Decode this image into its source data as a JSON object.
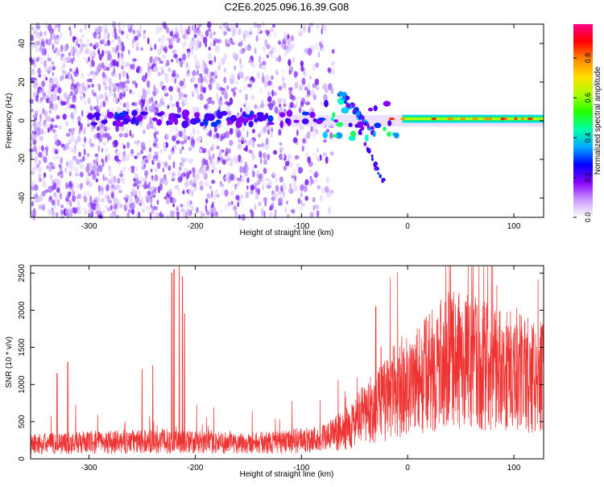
{
  "figure": {
    "title": "C2E6.2025.096.16.39.G08"
  },
  "chart_data": [
    {
      "type": "heatmap",
      "xlabel": "Height of straight line (km)",
      "ylabel": "Frequency (Hz)",
      "xlim": [
        -355,
        128
      ],
      "ylim": [
        -50,
        50
      ],
      "xticks": [
        -300,
        -200,
        -100,
        0,
        100
      ],
      "yticks": [
        -40,
        -20,
        0,
        20,
        40
      ],
      "colorbar": {
        "label": "Normalized spectral amplitude",
        "range": [
          0,
          0.97
        ],
        "ticks": [
          0.0,
          0.2,
          0.4,
          0.6,
          0.8
        ],
        "colormap": [
          "#ffffff",
          "#cc99ff",
          "#8800ff",
          "#0000ff",
          "#00aaff",
          "#00ffaa",
          "#22ff00",
          "#aaff00",
          "#ffdd00",
          "#ff8800",
          "#ff0000",
          "#ff0088"
        ]
      },
      "features": {
        "scattered_noise_x_range": [
          -355,
          -70
        ],
        "noise_y_range": [
          -50,
          50
        ],
        "carrier_frequency_hz": 1,
        "carrier_strong_from_km": -5,
        "carrier_x_end": 128,
        "faint_band_half_width_hz": 3
      },
      "grid": false
    },
    {
      "type": "line",
      "xlabel": "Height of straight line (km)",
      "ylabel": "SNR (10 * v/v)",
      "xlim": [
        -355,
        128
      ],
      "ylim": [
        0,
        2600
      ],
      "xticks": [
        -300,
        -200,
        -100,
        0,
        100
      ],
      "yticks": [
        0,
        500,
        1000,
        1500,
        2000,
        2500
      ],
      "series": [
        {
          "color": "#ee3333",
          "baseline_points": [
            [
              -355,
              200
            ],
            [
              -300,
              220
            ],
            [
              -260,
              230
            ],
            [
              -230,
              240
            ],
            [
              -210,
              230
            ],
            [
              -180,
              220
            ],
            [
              -150,
              215
            ],
            [
              -120,
              220
            ],
            [
              -100,
              250
            ],
            [
              -80,
              280
            ],
            [
              -60,
              380
            ],
            [
              -40,
              600
            ],
            [
              -20,
              800
            ],
            [
              -10,
              950
            ],
            [
              0,
              1000
            ],
            [
              20,
              1150
            ],
            [
              40,
              1350
            ],
            [
              60,
              1300
            ],
            [
              80,
              1230
            ],
            [
              100,
              1180
            ],
            [
              128,
              1080
            ]
          ],
          "spikes": [
            [
              -330,
              1150
            ],
            [
              -320,
              1300
            ],
            [
              -250,
              1200
            ],
            [
              -240,
              1250
            ],
            [
              -222,
              2500
            ],
            [
              -220,
              2550
            ],
            [
              -215,
              2600
            ],
            [
              -212,
              2450
            ],
            [
              -210,
              1950
            ],
            [
              -30,
              2050
            ],
            [
              -25,
              1500
            ],
            [
              -10,
              1150
            ],
            [
              -5,
              950
            ],
            [
              -3,
              900
            ]
          ]
        }
      ],
      "grid": false
    }
  ]
}
